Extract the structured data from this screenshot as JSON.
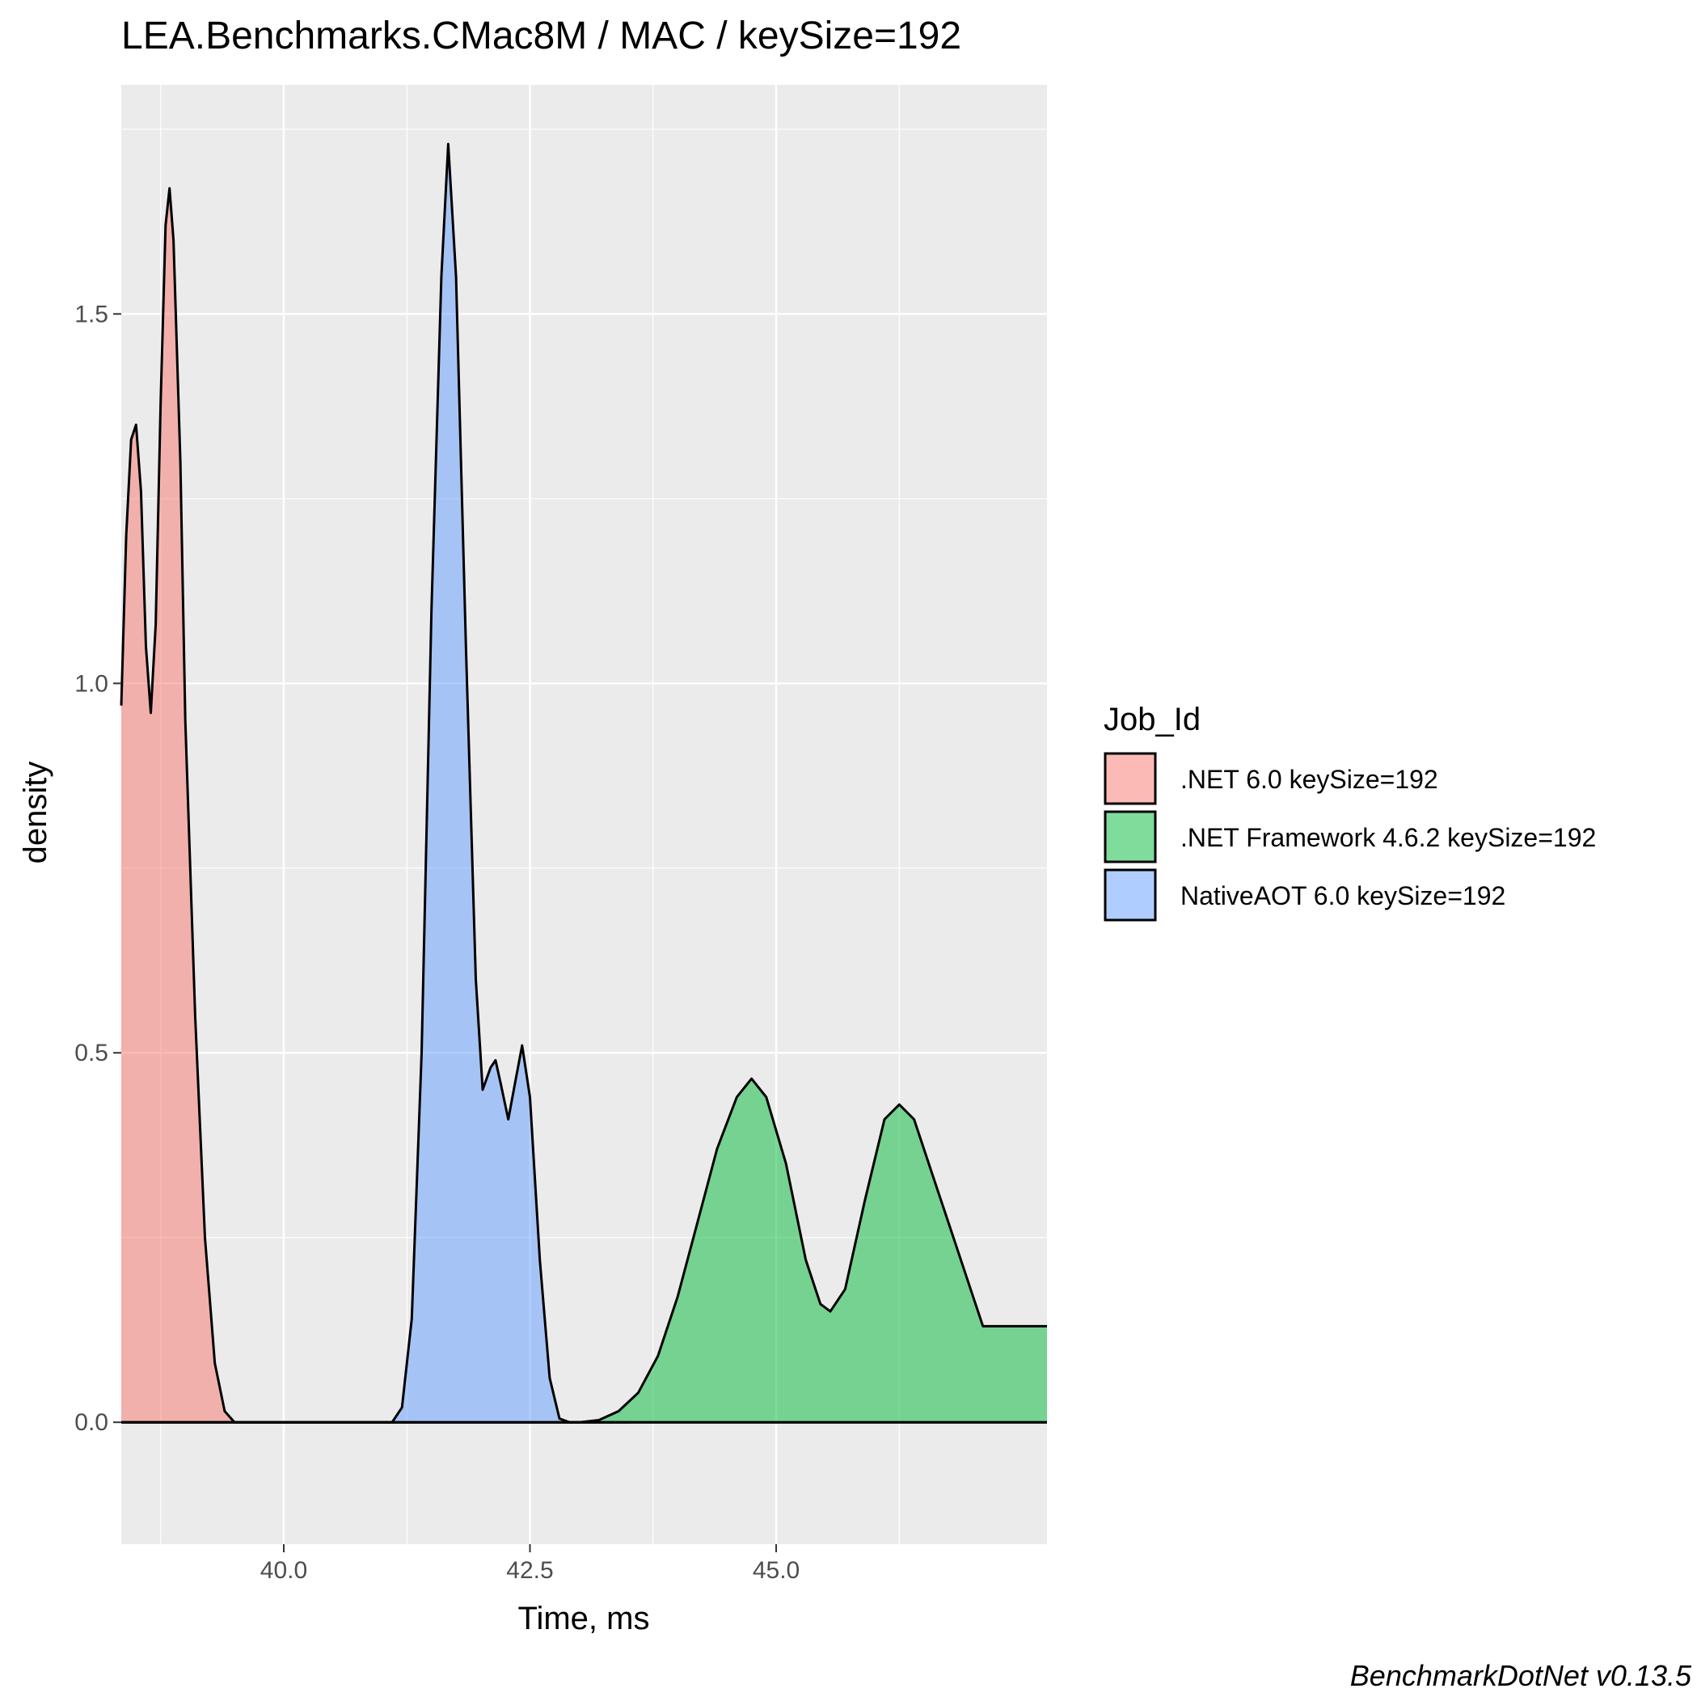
{
  "chart_data": {
    "type": "area",
    "title": "LEA.Benchmarks.CMac8M / MAC / keySize=192",
    "xlabel": "Time, ms",
    "ylabel": "density",
    "xlim": [
      38.35,
      47.75
    ],
    "ylim": [
      -0.165,
      1.81
    ],
    "xticks": [
      40.0,
      42.5,
      45.0
    ],
    "xtick_labels": [
      "40.0",
      "42.5",
      "45.0"
    ],
    "yticks": [
      0.0,
      0.5,
      1.0,
      1.5
    ],
    "ytick_labels": [
      "0.0",
      "0.5",
      "1.0",
      "1.5"
    ],
    "grid": true,
    "background": "#ebebeb",
    "legend": {
      "title": "Job_Id",
      "position": "right"
    },
    "caption": "BenchmarkDotNet v0.13.5",
    "series": [
      {
        "name": ".NET 6.0 keySize=192",
        "color": "#f8766d",
        "points": [
          [
            38.35,
            0.97
          ],
          [
            38.4,
            1.2
          ],
          [
            38.45,
            1.33
          ],
          [
            38.5,
            1.35
          ],
          [
            38.55,
            1.26
          ],
          [
            38.6,
            1.05
          ],
          [
            38.65,
            0.96
          ],
          [
            38.7,
            1.08
          ],
          [
            38.75,
            1.38
          ],
          [
            38.8,
            1.62
          ],
          [
            38.84,
            1.67
          ],
          [
            38.88,
            1.6
          ],
          [
            38.95,
            1.3
          ],
          [
            39.0,
            0.95
          ],
          [
            39.1,
            0.55
          ],
          [
            39.2,
            0.25
          ],
          [
            39.3,
            0.08
          ],
          [
            39.4,
            0.015
          ],
          [
            39.5,
            0.0
          ],
          [
            43.5,
            0.0
          ]
        ]
      },
      {
        "name": ".NET Framework 4.6.2 keySize=192",
        "color": "#00ba38",
        "points": [
          [
            38.35,
            0.0
          ],
          [
            43.0,
            0.0
          ],
          [
            43.2,
            0.003
          ],
          [
            43.4,
            0.015
          ],
          [
            43.6,
            0.04
          ],
          [
            43.8,
            0.09
          ],
          [
            44.0,
            0.17
          ],
          [
            44.2,
            0.27
          ],
          [
            44.4,
            0.37
          ],
          [
            44.6,
            0.44
          ],
          [
            44.75,
            0.465
          ],
          [
            44.9,
            0.44
          ],
          [
            45.1,
            0.35
          ],
          [
            45.3,
            0.22
          ],
          [
            45.45,
            0.16
          ],
          [
            45.55,
            0.15
          ],
          [
            45.7,
            0.18
          ],
          [
            45.9,
            0.3
          ],
          [
            46.1,
            0.41
          ],
          [
            46.25,
            0.43
          ],
          [
            46.4,
            0.41
          ],
          [
            46.6,
            0.33
          ],
          [
            46.8,
            0.25
          ],
          [
            47.0,
            0.17
          ],
          [
            47.1,
            0.13
          ],
          [
            47.75,
            0.13
          ]
        ]
      },
      {
        "name": "NativeAOT 6.0 keySize=192",
        "color": "#619cff",
        "points": [
          [
            38.35,
            0.0
          ],
          [
            41.1,
            0.0
          ],
          [
            41.2,
            0.02
          ],
          [
            41.3,
            0.14
          ],
          [
            41.4,
            0.5
          ],
          [
            41.5,
            1.1
          ],
          [
            41.6,
            1.55
          ],
          [
            41.67,
            1.73
          ],
          [
            41.75,
            1.55
          ],
          [
            41.85,
            1.05
          ],
          [
            41.95,
            0.6
          ],
          [
            42.02,
            0.45
          ],
          [
            42.1,
            0.48
          ],
          [
            42.15,
            0.49
          ],
          [
            42.2,
            0.46
          ],
          [
            42.28,
            0.41
          ],
          [
            42.35,
            0.46
          ],
          [
            42.42,
            0.51
          ],
          [
            42.5,
            0.44
          ],
          [
            42.6,
            0.22
          ],
          [
            42.7,
            0.06
          ],
          [
            42.8,
            0.005
          ],
          [
            42.9,
            0.0
          ],
          [
            47.75,
            0.0
          ]
        ]
      }
    ]
  }
}
